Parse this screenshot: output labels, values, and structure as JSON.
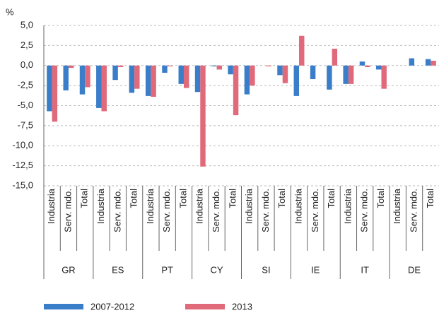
{
  "chart_data": {
    "type": "bar",
    "ylabel": "%",
    "categories": [
      "Industria",
      "Serv. mdo.",
      "Total",
      "Industria",
      "Serv. mdo.",
      "Total",
      "Industria",
      "Serv. mdo.",
      "Total",
      "Industria",
      "Serv. mdo.",
      "Total",
      "Industria",
      "Serv. mdo.",
      "Total",
      "Industria",
      "Serv. mdo.",
      "Total",
      "Industria",
      "Serv. mdo.",
      "Total",
      "Industria",
      "Serv. mdo.",
      "Total"
    ],
    "groups": [
      "GR",
      "ES",
      "PT",
      "CY",
      "SI",
      "IE",
      "IT",
      "DE"
    ],
    "series": [
      {
        "name": "2007-2012",
        "color": "#3a7dc9",
        "values": [
          -5.7,
          -3.1,
          -3.6,
          -5.3,
          -1.8,
          -3.4,
          -3.8,
          -0.9,
          -2.3,
          -3.3,
          -0.1,
          -1.1,
          -3.6,
          0.0,
          -1.2,
          -3.8,
          -1.7,
          -3.0,
          -2.3,
          0.5,
          -0.5,
          0.0,
          0.9,
          0.8
        ]
      },
      {
        "name": "2013",
        "color": "#e06a7a",
        "values": [
          -7.0,
          -0.3,
          -2.7,
          -5.7,
          -0.2,
          -2.9,
          -3.9,
          -0.1,
          -2.8,
          -12.6,
          -0.5,
          -6.2,
          -2.5,
          -0.1,
          -2.2,
          3.7,
          0.0,
          2.1,
          -2.3,
          -0.2,
          -2.9,
          0.0,
          0.0,
          0.6
        ]
      }
    ],
    "ylim": [
      -15,
      5
    ],
    "yticks": [
      {
        "value": 5,
        "label": "5,0"
      },
      {
        "value": 2.5,
        "label": "2,5"
      },
      {
        "value": 0,
        "label": "0,0"
      },
      {
        "value": -2.5,
        "label": "-2,5"
      },
      {
        "value": -5,
        "label": "-5,0"
      },
      {
        "value": -7.5,
        "label": "-7,5"
      },
      {
        "value": -10,
        "label": "-10,0"
      },
      {
        "value": -12.5,
        "label": "-12,5"
      },
      {
        "value": -15,
        "label": "-15,0"
      }
    ],
    "grid": true
  }
}
